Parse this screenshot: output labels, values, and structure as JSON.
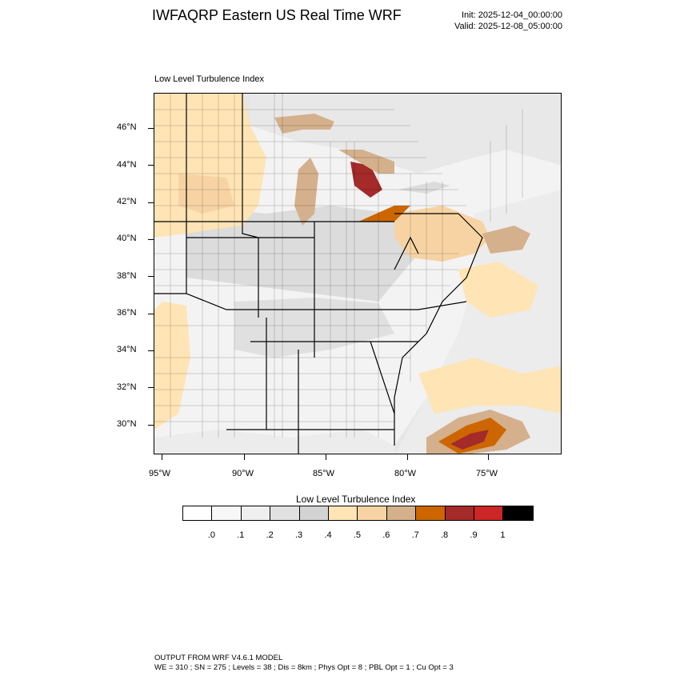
{
  "header": {
    "title": "IWFAQRP Eastern US Real Time WRF",
    "init": "Init: 2025-12-04_00:00:00",
    "valid": "Valid: 2025-12-08_05:00:00"
  },
  "map": {
    "subtitle": "Low Level Turbulence Index",
    "lat_labels": [
      "46°N",
      "44°N",
      "42°N",
      "40°N",
      "38°N",
      "36°N",
      "34°N",
      "32°N",
      "30°N"
    ],
    "lon_labels": [
      "95°W",
      "90°W",
      "85°W",
      "80°W",
      "75°W"
    ]
  },
  "colorbar": {
    "title": "Low Level Turbulence Index",
    "colors": [
      "#ffffff",
      "#f7f7f7",
      "#efefef",
      "#e1e1e1",
      "#d3d3d3",
      "#ffe4b5",
      "#f7d3a3",
      "#d4b08c",
      "#cd6600",
      "#a52a2a",
      "#cd2626",
      "#000000"
    ],
    "labels": [
      ".0",
      ".1",
      ".2",
      ".3",
      ".4",
      ".5",
      ".6",
      ".7",
      ".8",
      ".9",
      "1"
    ]
  },
  "footer": {
    "line1": "OUTPUT FROM WRF V4.6.1 MODEL",
    "line2": "WE = 310 ; SN = 275 ; Levels = 38 ; Dis = 8km ; Phys Opt = 8 ; PBL Opt = 1 ; Cu Opt = 3"
  }
}
